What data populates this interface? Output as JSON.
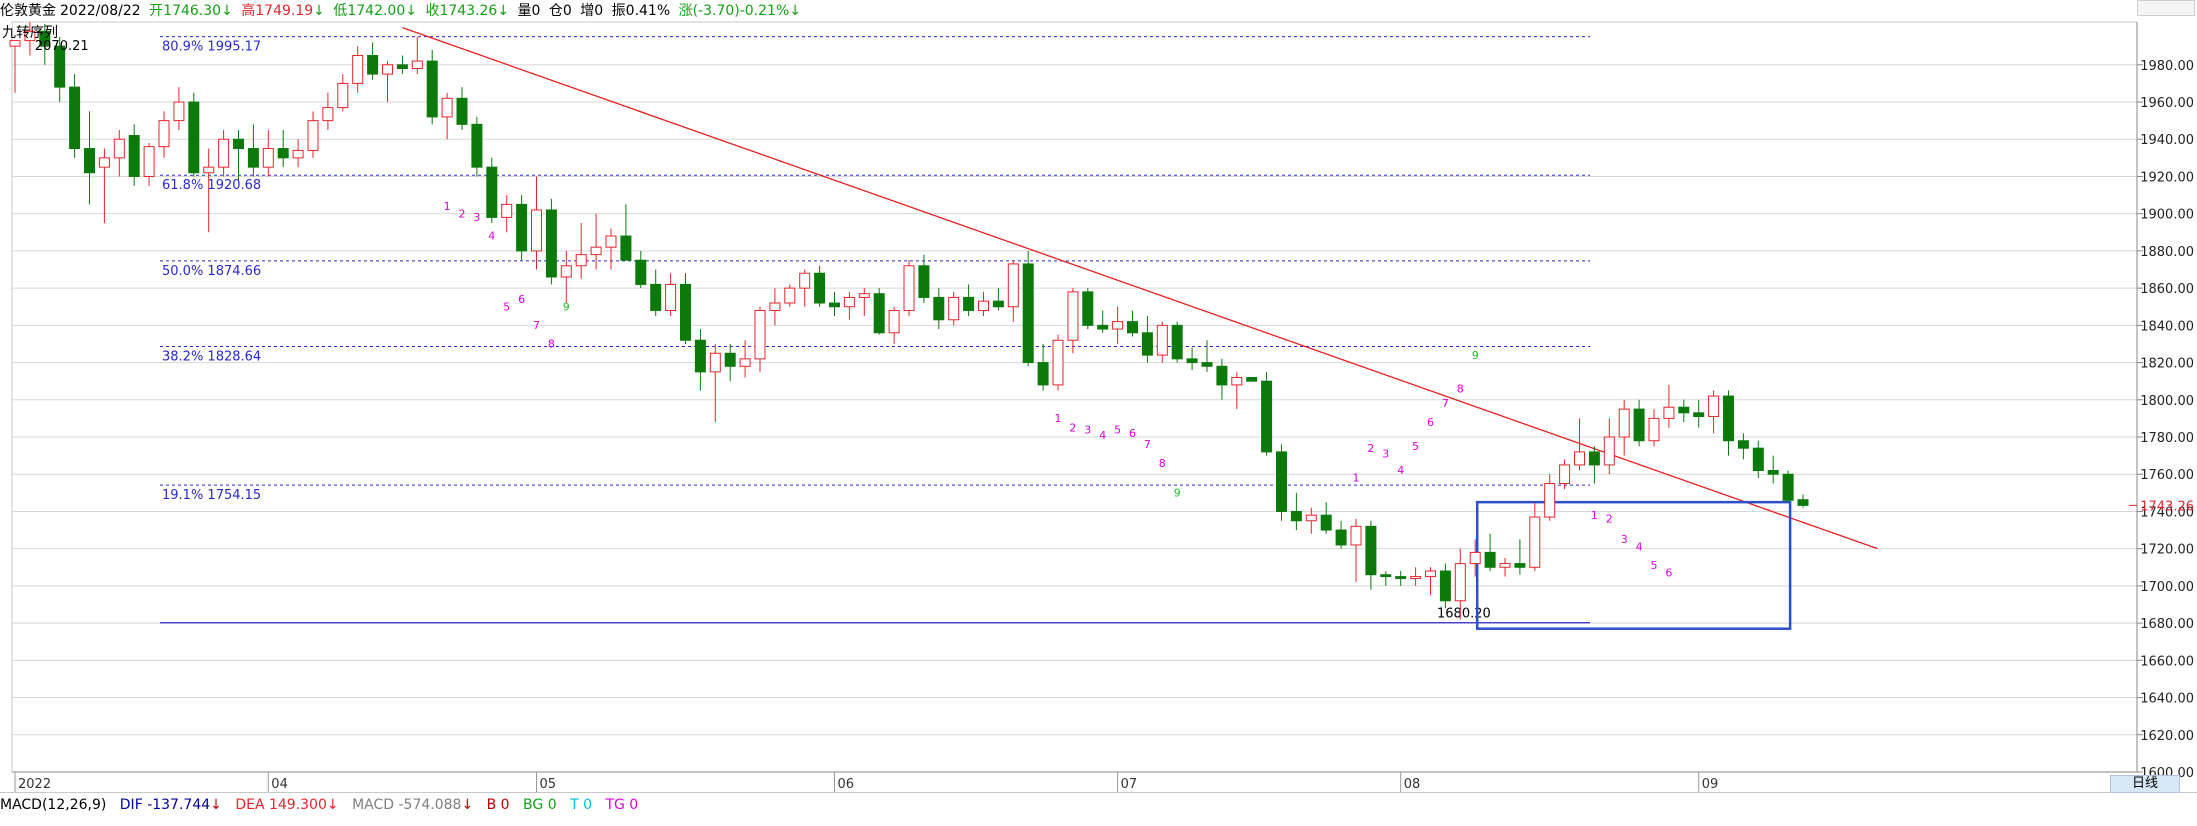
{
  "header": {
    "symbol": "伦敦黄金",
    "date": "2022/08/22",
    "open_label": "开",
    "open": "1746.30",
    "open_arrow": "↓",
    "high_label": "高",
    "high": "1749.19",
    "high_arrow": "↓",
    "low_label": "低",
    "low": "1742.00",
    "low_arrow": "↓",
    "close_label": "收",
    "close": "1743.26",
    "close_arrow": "↓",
    "volume": "量0",
    "position": "仓0",
    "increase": "增0",
    "amplitude": "振0.41%",
    "change": "涨(-3.70)-0.21%",
    "change_arrow": "↓"
  },
  "indicator": {
    "name": "九转序列",
    "top_label": "2070.21"
  },
  "timeframe": "日线",
  "macd": {
    "name": "MACD(12,26,9)",
    "dif": "DIF -137.744",
    "dif_arrow": "↓",
    "dea": "DEA 149.300",
    "dea_arrow": "↓",
    "macd": "MACD -574.088",
    "macd_arrow": "↓",
    "b": "B 0",
    "bg": "BG 0",
    "t": "T 0",
    "tg": "TG 0"
  },
  "colors": {
    "up": "#e8252b",
    "down": "#0b7a0b",
    "fib_line": "#2a2ac8",
    "trend_line": "#e82020",
    "box": "#2a4fc8",
    "grid": "#d8d8d8",
    "magenta": "#e000e0",
    "green": "#22c022"
  },
  "chart_data": {
    "type": "candlestick",
    "ylim": [
      1600,
      2003
    ],
    "y_ticks": [
      "1600.00",
      "1620.00",
      "1640.00",
      "1660.00",
      "1680.00",
      "1700.00",
      "1720.00",
      "1740.00",
      "1760.00",
      "1780.00",
      "1800.00",
      "1820.00",
      "1840.00",
      "1860.00",
      "1880.00",
      "1900.00",
      "1920.00",
      "1940.00",
      "1960.00",
      "1980.00"
    ],
    "x_labels": [
      {
        "label": "2022",
        "i": 0
      },
      {
        "label": "04",
        "i": 17
      },
      {
        "label": "05",
        "i": 35
      },
      {
        "label": "06",
        "i": 55
      },
      {
        "label": "07",
        "i": 74
      },
      {
        "label": "08",
        "i": 93
      },
      {
        "label": "09",
        "i": 113
      }
    ],
    "last_price": "1743.26",
    "candles": [
      [
        1990,
        1993,
        1965,
        1993
      ],
      [
        1993,
        2003,
        1985,
        1998
      ],
      [
        1998,
        2002,
        1980,
        1990
      ],
      [
        1990,
        1995,
        1960,
        1968
      ],
      [
        1968,
        1975,
        1930,
        1935
      ],
      [
        1935,
        1955,
        1905,
        1922
      ],
      [
        1925,
        1935,
        1895,
        1930
      ],
      [
        1930,
        1945,
        1920,
        1940
      ],
      [
        1942,
        1948,
        1915,
        1920
      ],
      [
        1920,
        1938,
        1915,
        1936
      ],
      [
        1936,
        1955,
        1930,
        1950
      ],
      [
        1950,
        1968,
        1945,
        1960
      ],
      [
        1960,
        1965,
        1920,
        1922
      ],
      [
        1922,
        1935,
        1890,
        1925
      ],
      [
        1925,
        1945,
        1920,
        1940
      ],
      [
        1940,
        1945,
        1918,
        1935
      ],
      [
        1935,
        1948,
        1920,
        1925
      ],
      [
        1925,
        1945,
        1920,
        1935
      ],
      [
        1935,
        1945,
        1925,
        1930
      ],
      [
        1930,
        1940,
        1925,
        1934
      ],
      [
        1934,
        1955,
        1930,
        1950
      ],
      [
        1950,
        1965,
        1945,
        1957
      ],
      [
        1957,
        1975,
        1955,
        1970
      ],
      [
        1970,
        1990,
        1965,
        1985
      ],
      [
        1985,
        1992,
        1972,
        1975
      ],
      [
        1975,
        1982,
        1960,
        1980
      ],
      [
        1980,
        1985,
        1975,
        1978
      ],
      [
        1978,
        1995,
        1975,
        1982
      ],
      [
        1982,
        1988,
        1948,
        1952
      ],
      [
        1952,
        1965,
        1940,
        1962
      ],
      [
        1962,
        1968,
        1945,
        1948
      ],
      [
        1948,
        1952,
        1920,
        1925
      ],
      [
        1925,
        1930,
        1895,
        1898
      ],
      [
        1898,
        1910,
        1890,
        1905
      ],
      [
        1905,
        1910,
        1875,
        1880
      ],
      [
        1880,
        1920,
        1870,
        1902
      ],
      [
        1902,
        1908,
        1862,
        1866
      ],
      [
        1866,
        1880,
        1852,
        1872
      ],
      [
        1872,
        1895,
        1865,
        1878
      ],
      [
        1878,
        1900,
        1870,
        1882
      ],
      [
        1882,
        1892,
        1870,
        1888
      ],
      [
        1888,
        1905,
        1875,
        1875
      ],
      [
        1875,
        1880,
        1860,
        1862
      ],
      [
        1862,
        1870,
        1845,
        1848
      ],
      [
        1848,
        1868,
        1845,
        1862
      ],
      [
        1862,
        1868,
        1830,
        1832
      ],
      [
        1832,
        1838,
        1805,
        1815
      ],
      [
        1815,
        1830,
        1788,
        1825
      ],
      [
        1825,
        1830,
        1810,
        1818
      ],
      [
        1818,
        1832,
        1812,
        1822
      ],
      [
        1822,
        1850,
        1815,
        1848
      ],
      [
        1848,
        1860,
        1840,
        1852
      ],
      [
        1852,
        1862,
        1850,
        1860
      ],
      [
        1860,
        1870,
        1850,
        1868
      ],
      [
        1868,
        1872,
        1850,
        1852
      ],
      [
        1852,
        1858,
        1845,
        1850
      ],
      [
        1850,
        1858,
        1843,
        1855
      ],
      [
        1855,
        1860,
        1845,
        1857
      ],
      [
        1857,
        1860,
        1835,
        1836
      ],
      [
        1836,
        1850,
        1830,
        1848
      ],
      [
        1848,
        1875,
        1845,
        1872
      ],
      [
        1872,
        1878,
        1852,
        1855
      ],
      [
        1855,
        1860,
        1838,
        1843
      ],
      [
        1843,
        1858,
        1840,
        1855
      ],
      [
        1855,
        1862,
        1845,
        1848
      ],
      [
        1848,
        1858,
        1845,
        1853
      ],
      [
        1853,
        1860,
        1848,
        1850
      ],
      [
        1850,
        1875,
        1842,
        1873
      ],
      [
        1873,
        1880,
        1818,
        1820
      ],
      [
        1820,
        1830,
        1805,
        1808
      ],
      [
        1808,
        1835,
        1805,
        1832
      ],
      [
        1832,
        1860,
        1825,
        1858
      ],
      [
        1858,
        1860,
        1838,
        1840
      ],
      [
        1840,
        1848,
        1836,
        1838
      ],
      [
        1838,
        1850,
        1830,
        1842
      ],
      [
        1842,
        1848,
        1834,
        1836
      ],
      [
        1836,
        1845,
        1820,
        1824
      ],
      [
        1824,
        1842,
        1820,
        1840
      ],
      [
        1840,
        1842,
        1820,
        1822
      ],
      [
        1822,
        1828,
        1816,
        1820
      ],
      [
        1820,
        1832,
        1815,
        1818
      ],
      [
        1818,
        1822,
        1800,
        1808
      ],
      [
        1808,
        1815,
        1795,
        1812
      ],
      [
        1812,
        1812,
        1810,
        1810
      ],
      [
        1810,
        1815,
        1770,
        1772
      ],
      [
        1772,
        1776,
        1735,
        1740
      ],
      [
        1740,
        1750,
        1730,
        1735
      ],
      [
        1735,
        1742,
        1728,
        1738
      ],
      [
        1738,
        1745,
        1728,
        1730
      ],
      [
        1730,
        1735,
        1720,
        1722
      ],
      [
        1722,
        1736,
        1702,
        1732
      ],
      [
        1732,
        1735,
        1698,
        1706
      ],
      [
        1706,
        1708,
        1700,
        1705
      ],
      [
        1705,
        1708,
        1700,
        1704
      ],
      [
        1704,
        1710,
        1700,
        1705
      ],
      [
        1705,
        1710,
        1695,
        1708
      ],
      [
        1708,
        1712,
        1688,
        1692
      ],
      [
        1692,
        1720,
        1682,
        1712
      ],
      [
        1712,
        1725,
        1705,
        1718
      ],
      [
        1718,
        1728,
        1708,
        1710
      ],
      [
        1710,
        1715,
        1705,
        1712
      ],
      [
        1712,
        1725,
        1706,
        1710
      ],
      [
        1710,
        1745,
        1708,
        1737
      ],
      [
        1737,
        1760,
        1735,
        1755
      ],
      [
        1755,
        1768,
        1752,
        1765
      ],
      [
        1765,
        1790,
        1762,
        1772
      ],
      [
        1772,
        1775,
        1755,
        1765
      ],
      [
        1765,
        1790,
        1760,
        1780
      ],
      [
        1780,
        1800,
        1770,
        1795
      ],
      [
        1795,
        1800,
        1775,
        1778
      ],
      [
        1778,
        1795,
        1775,
        1790
      ],
      [
        1790,
        1808,
        1785,
        1796
      ],
      [
        1796,
        1800,
        1788,
        1793
      ],
      [
        1793,
        1800,
        1785,
        1791
      ],
      [
        1791,
        1805,
        1782,
        1802
      ],
      [
        1802,
        1805,
        1770,
        1778
      ],
      [
        1778,
        1782,
        1768,
        1774
      ],
      [
        1774,
        1778,
        1758,
        1762
      ],
      [
        1762,
        1770,
        1755,
        1760
      ],
      [
        1760,
        1762,
        1745,
        1746
      ],
      [
        1746.3,
        1749.19,
        1742,
        1743.26
      ]
    ],
    "fib_levels": [
      {
        "label": "80.9% 1995.17",
        "value": 1995.17
      },
      {
        "label": "61.8% 1920.68",
        "value": 1920.68
      },
      {
        "label": "50.0% 1874.66",
        "value": 1874.66
      },
      {
        "label": "38.2% 1828.64",
        "value": 1828.64
      },
      {
        "label": "19.1% 1754.15",
        "value": 1754.15
      }
    ],
    "support_level": {
      "label": "1680.20",
      "value": 1680.2
    },
    "trendline": {
      "from": {
        "i": 26,
        "price": 2000
      },
      "to": {
        "i": 125,
        "price": 1720
      }
    },
    "box": {
      "i_from": 98,
      "i_to": 119,
      "top": 1745,
      "bottom": 1677
    },
    "td_sequence": [
      {
        "label": "1",
        "i": 29,
        "price": 1902
      },
      {
        "label": "2",
        "i": 30,
        "price": 1898
      },
      {
        "label": "3",
        "i": 31,
        "price": 1896
      },
      {
        "label": "4",
        "i": 32,
        "price": 1886
      },
      {
        "label": "5",
        "i": 33,
        "price": 1848
      },
      {
        "label": "6",
        "i": 34,
        "price": 1852
      },
      {
        "label": "7",
        "i": 35,
        "price": 1838
      },
      {
        "label": "8",
        "i": 36,
        "price": 1828
      },
      {
        "label": "9",
        "i": 37,
        "price": 1848
      },
      {
        "label": "1",
        "i": 70,
        "price": 1788
      },
      {
        "label": "2",
        "i": 71,
        "price": 1783
      },
      {
        "label": "3",
        "i": 72,
        "price": 1782
      },
      {
        "label": "4",
        "i": 73,
        "price": 1779
      },
      {
        "label": "5",
        "i": 74,
        "price": 1782
      },
      {
        "label": "6",
        "i": 75,
        "price": 1780
      },
      {
        "label": "7",
        "i": 76,
        "price": 1774
      },
      {
        "label": "8",
        "i": 77,
        "price": 1764
      },
      {
        "label": "9",
        "i": 78,
        "price": 1748
      },
      {
        "label": "1",
        "i": 90,
        "price": 1756
      },
      {
        "label": "2",
        "i": 91,
        "price": 1772
      },
      {
        "label": "3",
        "i": 92,
        "price": 1769
      },
      {
        "label": "4",
        "i": 93,
        "price": 1760
      },
      {
        "label": "5",
        "i": 94,
        "price": 1773
      },
      {
        "label": "6",
        "i": 95,
        "price": 1786
      },
      {
        "label": "7",
        "i": 96,
        "price": 1796
      },
      {
        "label": "8",
        "i": 97,
        "price": 1804
      },
      {
        "label": "9",
        "i": 98,
        "price": 1822
      },
      {
        "label": "1",
        "i": 106,
        "price": 1736
      },
      {
        "label": "2",
        "i": 107,
        "price": 1734
      },
      {
        "label": "3",
        "i": 108,
        "price": 1723
      },
      {
        "label": "4",
        "i": 109,
        "price": 1719
      },
      {
        "label": "5",
        "i": 110,
        "price": 1709
      },
      {
        "label": "6",
        "i": 111,
        "price": 1705
      }
    ]
  }
}
